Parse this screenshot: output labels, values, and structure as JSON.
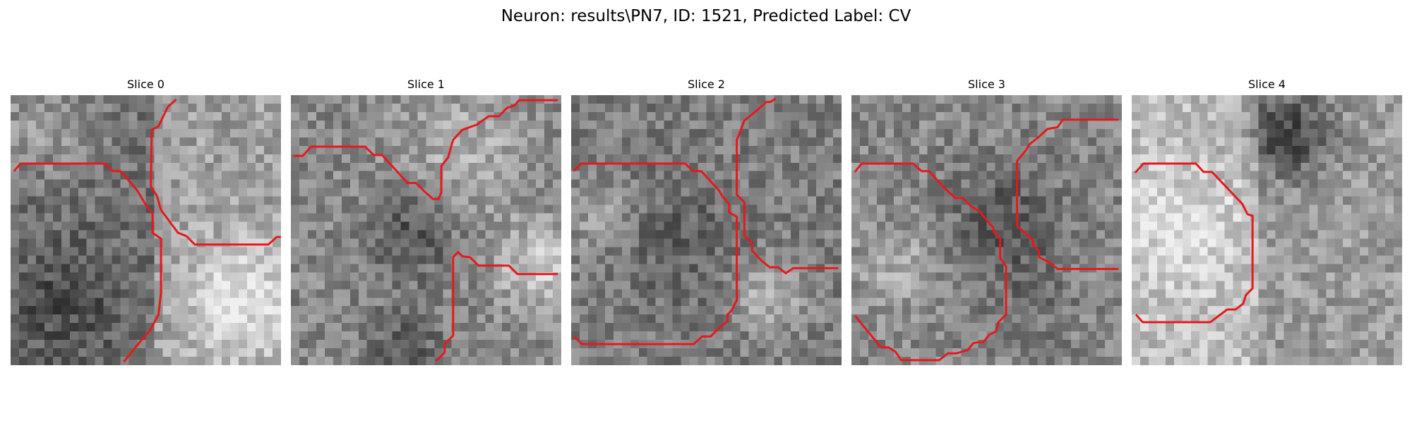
{
  "figure": {
    "suptitle": "Neuron: results\\PN7, ID: 1521, Predicted Label: CV",
    "contour_color": "#e41a1c"
  },
  "panels": [
    {
      "title": "Slice 0"
    },
    {
      "title": "Slice 1"
    },
    {
      "title": "Slice 2"
    },
    {
      "title": "Slice 3"
    },
    {
      "title": "Slice 4"
    }
  ]
}
